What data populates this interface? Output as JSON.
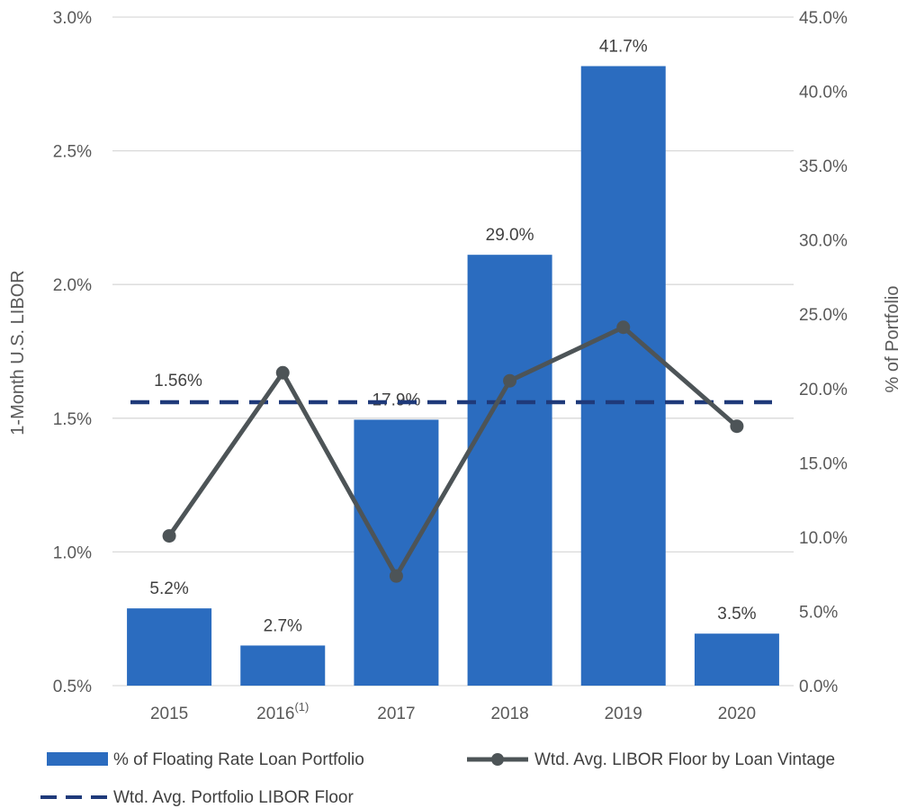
{
  "chart_data": {
    "type": "bar",
    "categories": [
      "2015",
      "2016",
      "2017",
      "2018",
      "2019",
      "2020"
    ],
    "category_superscripts": [
      "",
      "(1)",
      "",
      "",
      "",
      ""
    ],
    "series": [
      {
        "name": "% of Floating Rate Loan Portfolio",
        "type": "bar",
        "axis": "right",
        "values": [
          5.2,
          2.7,
          17.9,
          29.0,
          41.7,
          3.5
        ],
        "labels": [
          "5.2%",
          "2.7%",
          "17.9%",
          "29.0%",
          "41.7%",
          "3.5%"
        ],
        "color": "#2B6CBF"
      },
      {
        "name": "Wtd. Avg. LIBOR Floor by Loan Vintage",
        "type": "line",
        "axis": "left",
        "values": [
          1.06,
          1.67,
          0.91,
          1.64,
          1.84,
          1.47
        ],
        "color": "#4D5457"
      },
      {
        "name": "Wtd. Avg. Portfolio LIBOR Floor",
        "type": "dashed-line",
        "axis": "left",
        "value": 1.56,
        "label": "1.56%",
        "color": "#1F3A7A"
      }
    ],
    "y_left": {
      "label": "1-Month U.S. LIBOR",
      "ylim": [
        0.5,
        3.0
      ],
      "ticks": [
        0.5,
        1.0,
        1.5,
        2.0,
        2.5,
        3.0
      ],
      "tick_labels": [
        "0.5%",
        "1.0%",
        "1.5%",
        "2.0%",
        "2.5%",
        "3.0%"
      ]
    },
    "y_right": {
      "label": "% of Portfolio",
      "ylim": [
        0,
        45
      ],
      "ticks": [
        0,
        5,
        10,
        15,
        20,
        25,
        30,
        35,
        40,
        45
      ],
      "tick_labels": [
        "0.0%",
        "5.0%",
        "10.0%",
        "15.0%",
        "20.0%",
        "25.0%",
        "30.0%",
        "35.0%",
        "40.0%",
        "45.0%"
      ]
    },
    "grid": true,
    "legend": "bottom"
  }
}
